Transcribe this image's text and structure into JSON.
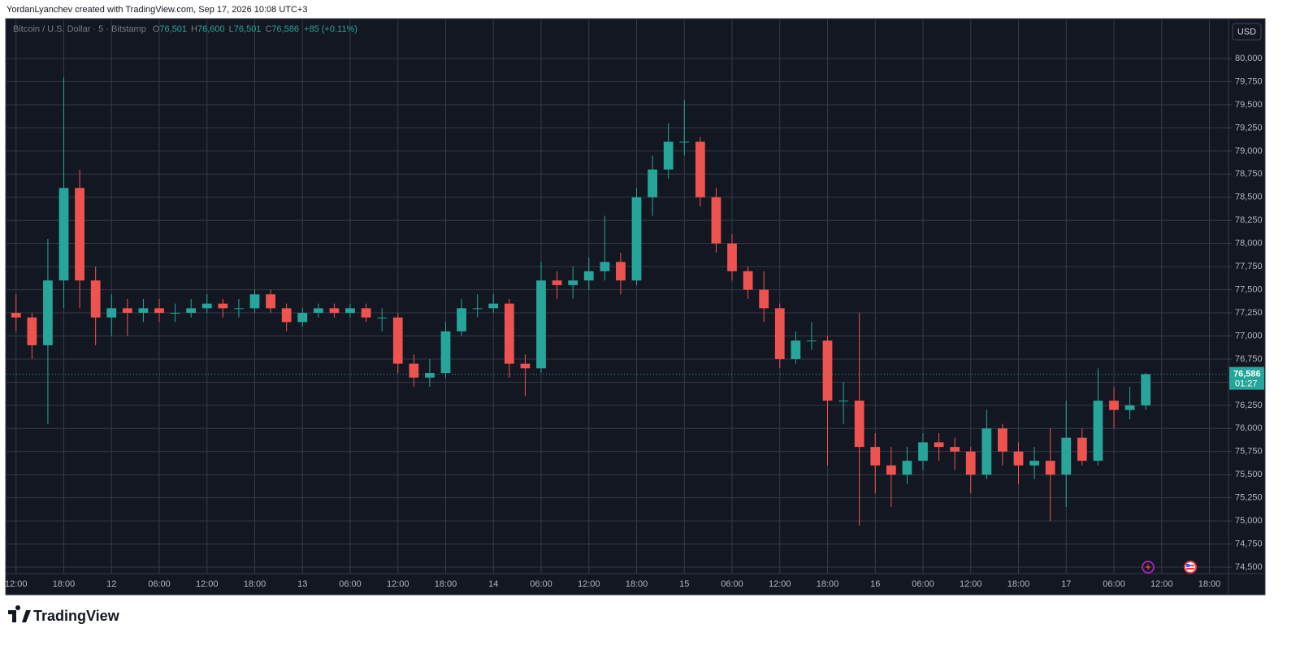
{
  "header": {
    "credit": "YordanLyanchev created with TradingView.com, Sep 17, 2026 10:08 UTC+3"
  },
  "chart_data": {
    "type": "candlestick",
    "symbol": "Bitcoin / U.S. Dollar · 5 · Bitstamp",
    "legend": [
      {
        "label": "O",
        "value": "76,501"
      },
      {
        "label": "H",
        "value": "76,600"
      },
      {
        "label": "L",
        "value": "76,501"
      },
      {
        "label": "C",
        "value": "76,586"
      }
    ],
    "change": "+85 (+0.11%)",
    "currency": "USD",
    "up_color": "#26a69a",
    "down_color": "#ef5350",
    "grid": true,
    "x": [
      12,
      14,
      16,
      18,
      20,
      22,
      24,
      26,
      28,
      30,
      32,
      34,
      36,
      38,
      40,
      42,
      44,
      46,
      48,
      50,
      52,
      54,
      56,
      58,
      60,
      62,
      64,
      66,
      68,
      70,
      72,
      74,
      76,
      78,
      80,
      82,
      84,
      86,
      88,
      90,
      92,
      94,
      96,
      98,
      100,
      102,
      104,
      106,
      108,
      110,
      112,
      114,
      116,
      118,
      120,
      122,
      124,
      126,
      128,
      130,
      132,
      134,
      136,
      138,
      140,
      142,
      144,
      146,
      148,
      150,
      152,
      154
    ],
    "open": [
      77250,
      77200,
      76900,
      77600,
      78600,
      77600,
      77200,
      77300,
      77250,
      77300,
      77250,
      77250,
      77300,
      77350,
      77300,
      77300,
      77450,
      77300,
      77150,
      77250,
      77300,
      77250,
      77300,
      77200,
      77200,
      76700,
      76550,
      76600,
      77050,
      77300,
      77300,
      77350,
      76700,
      76650,
      77600,
      77550,
      77600,
      77700,
      77800,
      77600,
      78500,
      78800,
      79100,
      79100,
      78500,
      78000,
      77700,
      77500,
      77300,
      76750,
      76950,
      76950,
      76300,
      76300,
      75800,
      75600,
      75500,
      75650,
      75850,
      75800,
      75750,
      75500,
      76000,
      75750,
      75600,
      75650,
      75500,
      75900,
      75650,
      76300,
      76200,
      76250
    ],
    "high": [
      77450,
      77250,
      78050,
      79800,
      78800,
      77750,
      77450,
      77400,
      77400,
      77400,
      77350,
      77400,
      77450,
      77400,
      77400,
      77500,
      77500,
      77350,
      77300,
      77350,
      77350,
      77350,
      77350,
      77300,
      77250,
      76800,
      76750,
      77150,
      77400,
      77450,
      77450,
      77400,
      76800,
      77800,
      77700,
      77750,
      77850,
      78300,
      77900,
      78600,
      78950,
      79300,
      79550,
      79150,
      78600,
      78100,
      77750,
      77700,
      77350,
      77050,
      77150,
      77000,
      76500,
      77250,
      75950,
      75800,
      75800,
      75950,
      75950,
      75900,
      75800,
      76200,
      76050,
      75850,
      75800,
      76000,
      76300,
      76000,
      76650,
      76450,
      76450,
      76600
    ],
    "low": [
      77050,
      76750,
      76050,
      77300,
      77300,
      76900,
      77000,
      77000,
      77150,
      77150,
      77150,
      77200,
      77250,
      77200,
      77200,
      77250,
      77250,
      77050,
      77100,
      77200,
      77200,
      77200,
      77150,
      77050,
      76600,
      76450,
      76450,
      76550,
      77000,
      77200,
      77250,
      76550,
      76350,
      76600,
      77400,
      77400,
      77500,
      77600,
      77450,
      77550,
      78300,
      78700,
      78950,
      78400,
      77900,
      77600,
      77400,
      77150,
      76650,
      76700,
      76850,
      75600,
      76050,
      74950,
      75300,
      75150,
      75400,
      75550,
      75650,
      75550,
      75300,
      75450,
      75600,
      75400,
      75450,
      75000,
      75150,
      75600,
      75600,
      76000,
      76100,
      76200
    ],
    "close": [
      77200,
      76900,
      77600,
      78600,
      77600,
      77200,
      77300,
      77250,
      77300,
      77250,
      77250,
      77300,
      77350,
      77300,
      77300,
      77450,
      77300,
      77150,
      77250,
      77300,
      77250,
      77300,
      77200,
      77200,
      76700,
      76550,
      76600,
      77050,
      77300,
      77300,
      77350,
      76700,
      76650,
      77600,
      77550,
      77600,
      77700,
      77800,
      77600,
      78500,
      78800,
      79100,
      79100,
      78500,
      78000,
      77700,
      77500,
      77300,
      76750,
      76950,
      76950,
      76300,
      76300,
      75800,
      75600,
      75500,
      75650,
      75850,
      75800,
      75750,
      75500,
      76000,
      75750,
      75600,
      75650,
      75500,
      75900,
      75650,
      76300,
      76200,
      76250,
      76586
    ],
    "xlim": [
      10.8,
      164.4
    ],
    "ylim": [
      74430,
      80422
    ],
    "xticks": [
      {
        "value": 12,
        "label": "12:00"
      },
      {
        "value": 18,
        "label": "18:00"
      },
      {
        "value": 24,
        "label": "12"
      },
      {
        "value": 30,
        "label": "06:00"
      },
      {
        "value": 36,
        "label": "12:00"
      },
      {
        "value": 42,
        "label": "18:00"
      },
      {
        "value": 48,
        "label": "13"
      },
      {
        "value": 54,
        "label": "06:00"
      },
      {
        "value": 60,
        "label": "12:00"
      },
      {
        "value": 66,
        "label": "18:00"
      },
      {
        "value": 72,
        "label": "14"
      },
      {
        "value": 78,
        "label": "06:00"
      },
      {
        "value": 84,
        "label": "12:00"
      },
      {
        "value": 90,
        "label": "18:00"
      },
      {
        "value": 96,
        "label": "15"
      },
      {
        "value": 102,
        "label": "06:00"
      },
      {
        "value": 108,
        "label": "12:00"
      },
      {
        "value": 114,
        "label": "18:00"
      },
      {
        "value": 120,
        "label": "16"
      },
      {
        "value": 126,
        "label": "06:00"
      },
      {
        "value": 132,
        "label": "12:00"
      },
      {
        "value": 138,
        "label": "18:00"
      },
      {
        "value": 144,
        "label": "17"
      },
      {
        "value": 150,
        "label": "06:00"
      },
      {
        "value": 156,
        "label": "12:00"
      },
      {
        "value": 162,
        "label": "18:00"
      }
    ],
    "yticks": [
      {
        "value": 74500,
        "label": "74,500"
      },
      {
        "value": 74750,
        "label": "74,750"
      },
      {
        "value": 75000,
        "label": "75,000"
      },
      {
        "value": 75250,
        "label": "75,250"
      },
      {
        "value": 75500,
        "label": "75,500"
      },
      {
        "value": 75750,
        "label": "75,750"
      },
      {
        "value": 76000,
        "label": "76,000"
      },
      {
        "value": 76250,
        "label": "76,250"
      },
      {
        "value": 76500,
        "label": "76,500"
      },
      {
        "value": 76750,
        "label": "76,750"
      },
      {
        "value": 77000,
        "label": "77,000"
      },
      {
        "value": 77250,
        "label": "77,250"
      },
      {
        "value": 77500,
        "label": "77,500"
      },
      {
        "value": 77750,
        "label": "77,750"
      },
      {
        "value": 78000,
        "label": "78,000"
      },
      {
        "value": 78250,
        "label": "78,250"
      },
      {
        "value": 78500,
        "label": "78,500"
      },
      {
        "value": 78750,
        "label": "78,750"
      },
      {
        "value": 79000,
        "label": "79,000"
      },
      {
        "value": 79250,
        "label": "79,250"
      },
      {
        "value": 79500,
        "label": "79,500"
      },
      {
        "value": 79750,
        "label": "79,750"
      },
      {
        "value": 80000,
        "label": "80,000"
      }
    ],
    "last_price": {
      "value": 76586,
      "label": "76,586"
    },
    "countdown": "01:27"
  },
  "footer": {
    "brand": "TradingView"
  }
}
